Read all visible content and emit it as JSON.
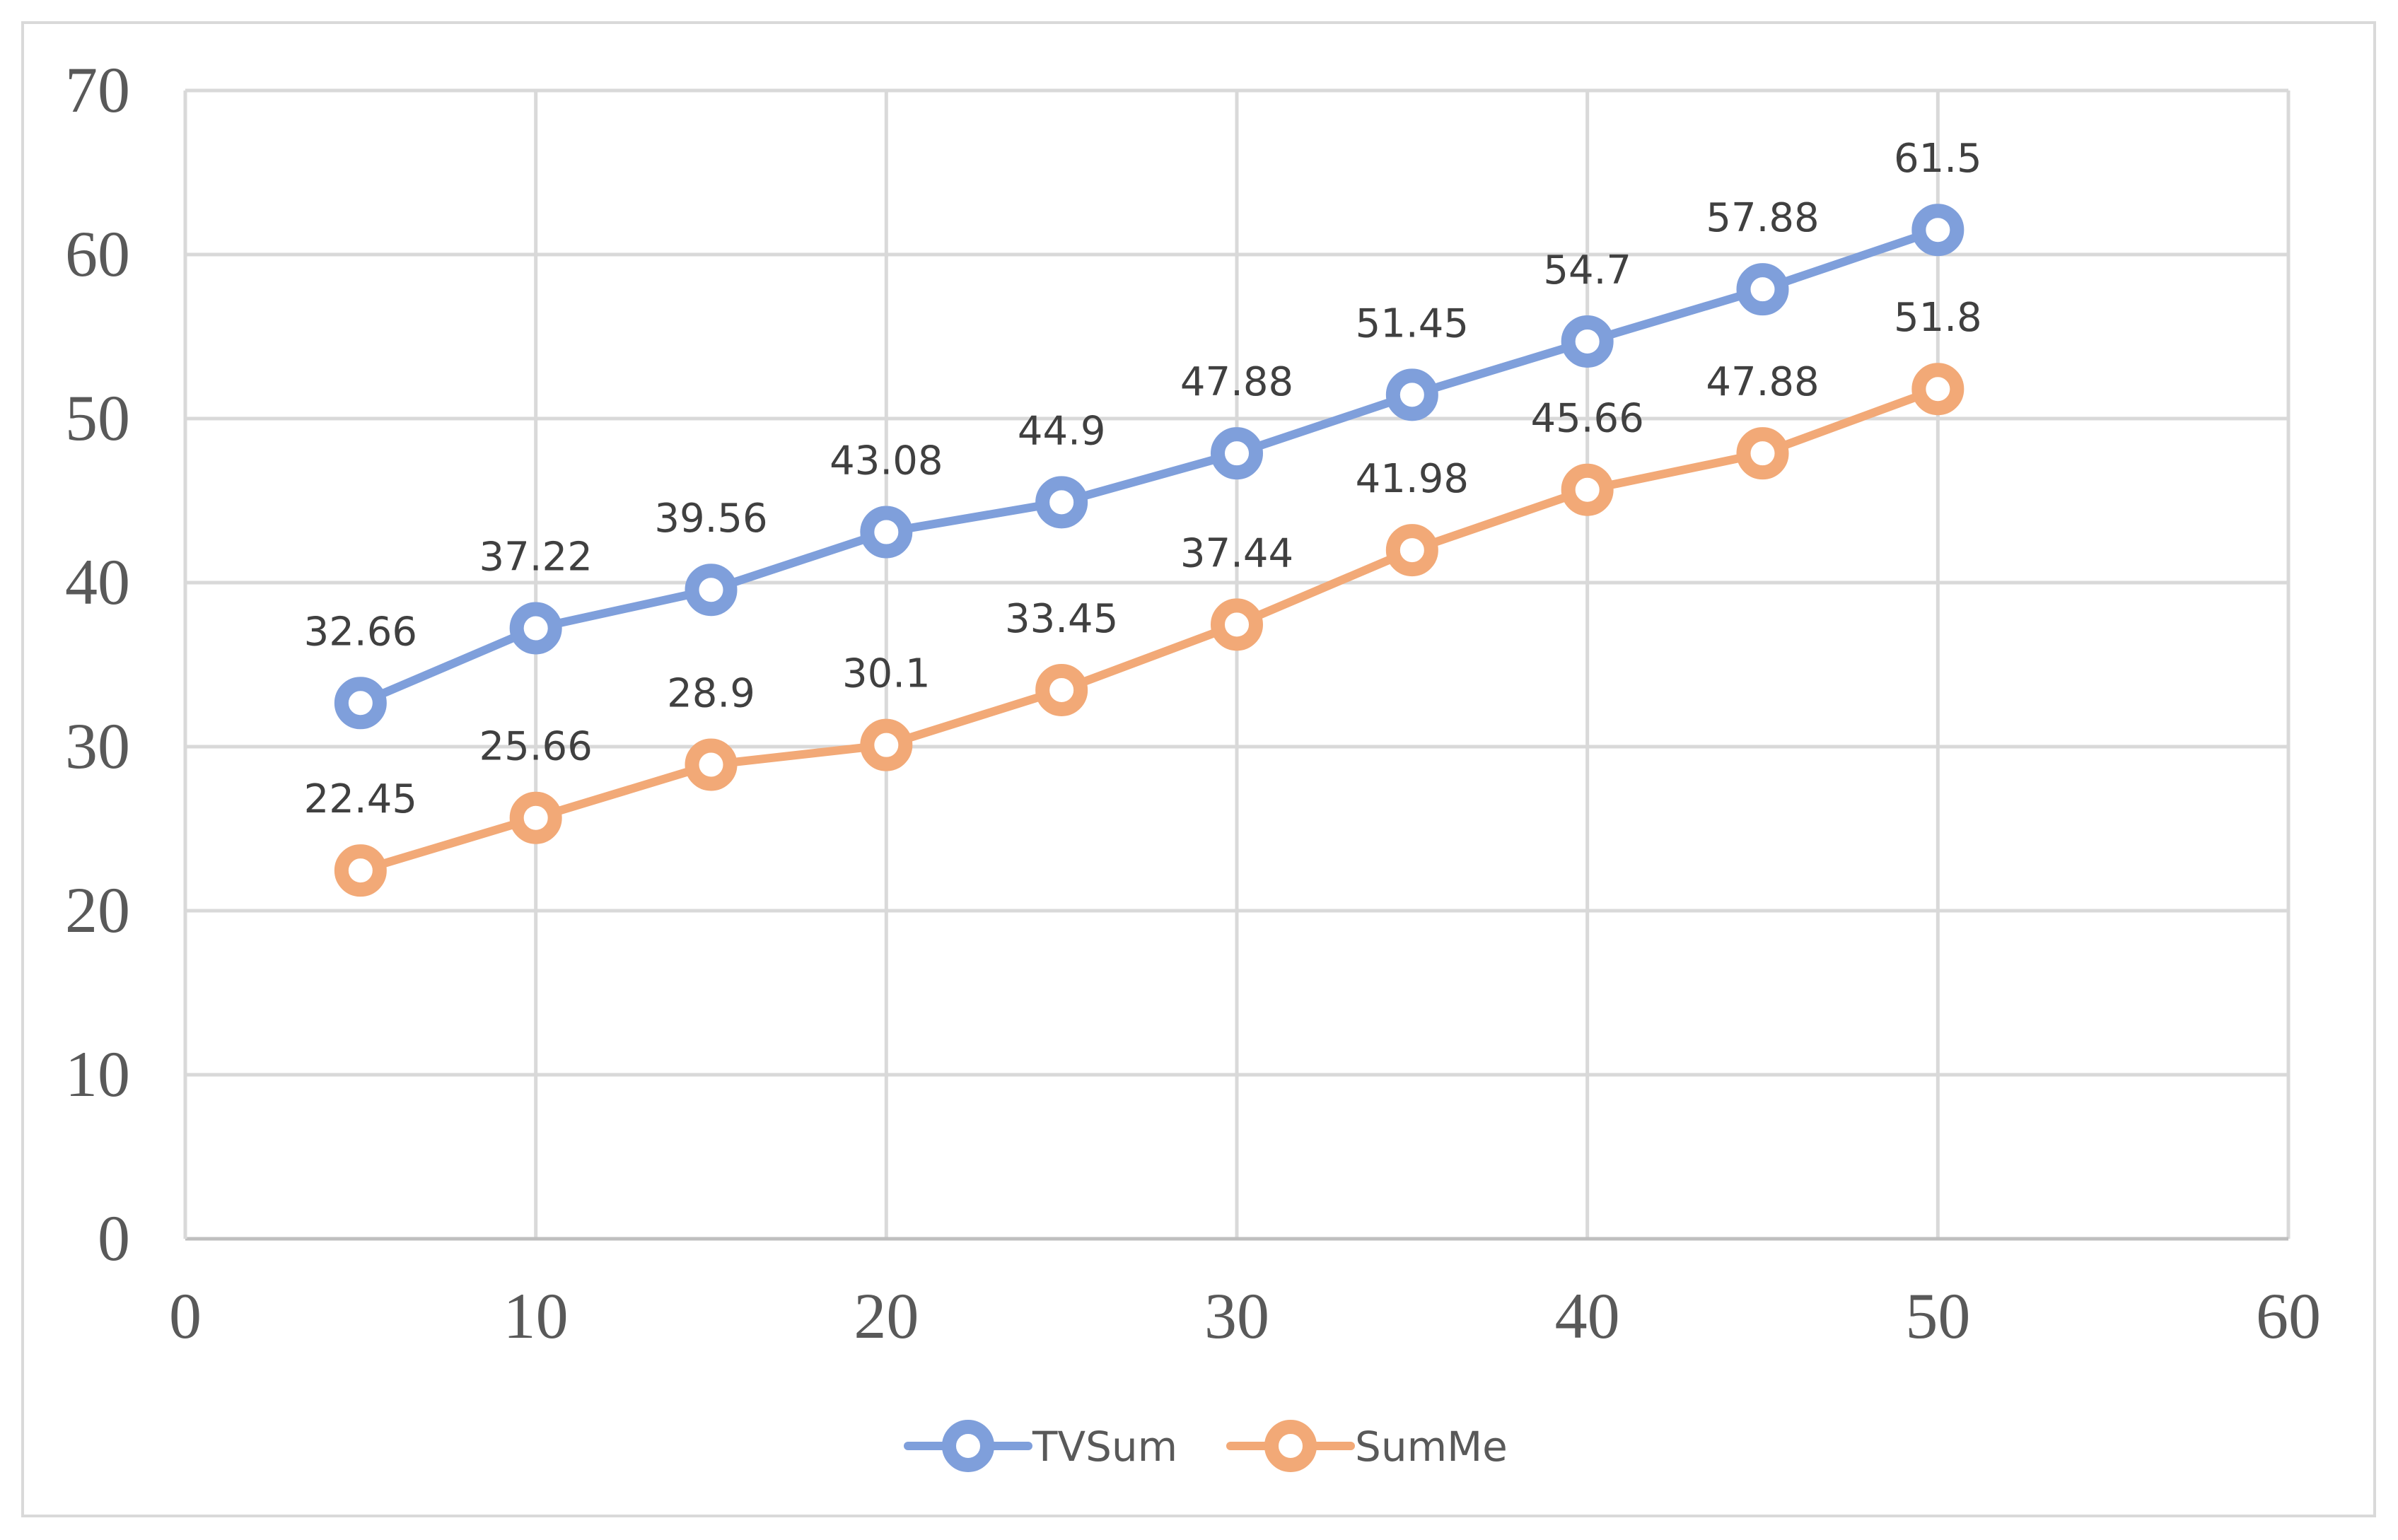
{
  "chart_data": {
    "type": "line",
    "title": "",
    "xlabel": "",
    "ylabel": "",
    "xlim": [
      0,
      60
    ],
    "ylim": [
      0,
      70
    ],
    "x_ticks": [
      0,
      10,
      20,
      30,
      40,
      50,
      60
    ],
    "y_ticks": [
      0,
      10,
      20,
      30,
      40,
      50,
      60,
      70
    ],
    "x_tick_labels": [
      "0",
      "10",
      "20",
      "30",
      "40",
      "50",
      "60"
    ],
    "y_tick_labels": [
      "0",
      "10",
      "20",
      "30",
      "40",
      "50",
      "60",
      "70"
    ],
    "grid": true,
    "legend_position": "bottom-center",
    "x": [
      5,
      10,
      15,
      20,
      25,
      30,
      35,
      40,
      45,
      50
    ],
    "series": [
      {
        "name": "TVSum",
        "color": "#7f9fdb",
        "values": [
          32.66,
          37.22,
          39.56,
          43.08,
          44.9,
          47.88,
          51.45,
          54.7,
          57.88,
          61.5
        ],
        "labels": [
          "32.66",
          "37.22",
          "39.56",
          "43.08",
          "44.9",
          "47.88",
          "51.45",
          "54.7",
          "57.88",
          "61.5"
        ]
      },
      {
        "name": "SumMe",
        "color": "#f2a977",
        "values": [
          22.45,
          25.66,
          28.9,
          30.1,
          33.45,
          37.44,
          41.98,
          45.66,
          47.88,
          51.8
        ],
        "labels": [
          "22.45",
          "25.66",
          "28.9",
          "30.1",
          "33.45",
          "37.44",
          "41.98",
          "45.66",
          "47.88",
          "51.8"
        ]
      }
    ]
  }
}
